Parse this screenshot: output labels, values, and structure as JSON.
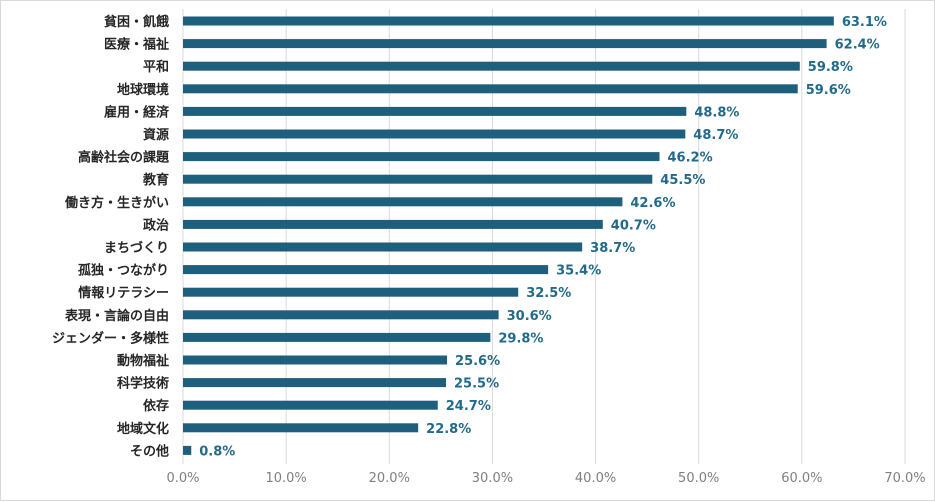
{
  "chart_data": {
    "type": "bar",
    "orientation": "horizontal",
    "title": "",
    "xlabel": "",
    "ylabel": "",
    "categories": [
      "貧困・飢餓",
      "医療・福祉",
      "平和",
      "地球環境",
      "雇用・経済",
      "資源",
      "高齢社会の課題",
      "教育",
      "働き方・生きがい",
      "政治",
      "まちづくり",
      "孤独・つながり",
      "情報リテラシー",
      "表現・言論の自由",
      "ジェンダー・多様性",
      "動物福祉",
      "科学技術",
      "依存",
      "地域文化",
      "その他"
    ],
    "values": [
      63.1,
      62.4,
      59.8,
      59.6,
      48.8,
      48.7,
      46.2,
      45.5,
      42.6,
      40.7,
      38.7,
      35.4,
      32.5,
      30.6,
      29.8,
      25.6,
      25.5,
      24.7,
      22.8,
      0.8
    ],
    "value_labels": [
      "63.1%",
      "62.4%",
      "59.8%",
      "59.6%",
      "48.8%",
      "48.7%",
      "46.2%",
      "45.5%",
      "42.6%",
      "40.7%",
      "38.7%",
      "35.4%",
      "32.5%",
      "30.6%",
      "29.8%",
      "25.6%",
      "25.5%",
      "24.7%",
      "22.8%",
      "0.8%"
    ],
    "xlim": [
      0,
      70
    ],
    "x_ticks": [
      0,
      10,
      20,
      30,
      40,
      50,
      60,
      70
    ],
    "x_tick_labels": [
      "0.0%",
      "10.0%",
      "20.0%",
      "30.0%",
      "40.0%",
      "50.0%",
      "60.0%",
      "70.0%"
    ],
    "grid": true,
    "legend": "none",
    "colors": {
      "bar": "#1f5f7e",
      "value_label": "#236a8a",
      "category_label": "#262626",
      "tick_label": "#808080",
      "grid": "#d9d9d9"
    }
  }
}
